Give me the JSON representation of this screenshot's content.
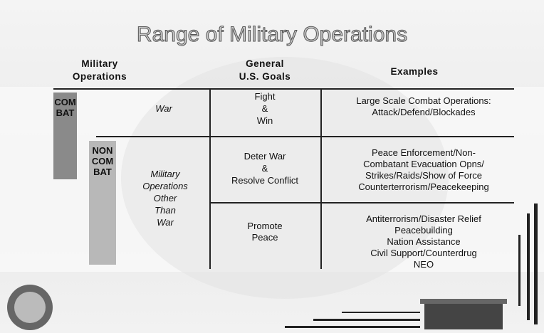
{
  "title": "Range of Military Operations",
  "headers": {
    "operations": [
      "Military",
      "Operations"
    ],
    "goals": [
      "General",
      "U.S. Goals"
    ],
    "examples": "Examples"
  },
  "side_labels": {
    "combat": "COMBAT",
    "noncombat": "NONCOMBAT"
  },
  "rows": [
    {
      "operation": [
        "War"
      ],
      "goal": [
        "Fight",
        "&",
        "Win"
      ],
      "examples": [
        "Large Scale Combat Operations:",
        "Attack/Defend/Blockades"
      ]
    },
    {
      "operation": [
        "Military",
        "Operations",
        "Other",
        "Than",
        "War"
      ],
      "goal": [
        "Deter War",
        "&",
        "Resolve Conflict"
      ],
      "examples": [
        "Peace Enforcement/Non-",
        "Combatant Evacuation Opns/",
        "Strikes/Raids/Show of Force",
        "Counterterrorism/Peacekeeping"
      ]
    },
    {
      "goal": [
        "Promote",
        "Peace"
      ],
      "examples": [
        "Antiterrorism/Disaster Relief",
        "Peacebuilding",
        "Nation Assistance",
        "Civil Support/Counterdrug",
        "NEO"
      ]
    }
  ]
}
